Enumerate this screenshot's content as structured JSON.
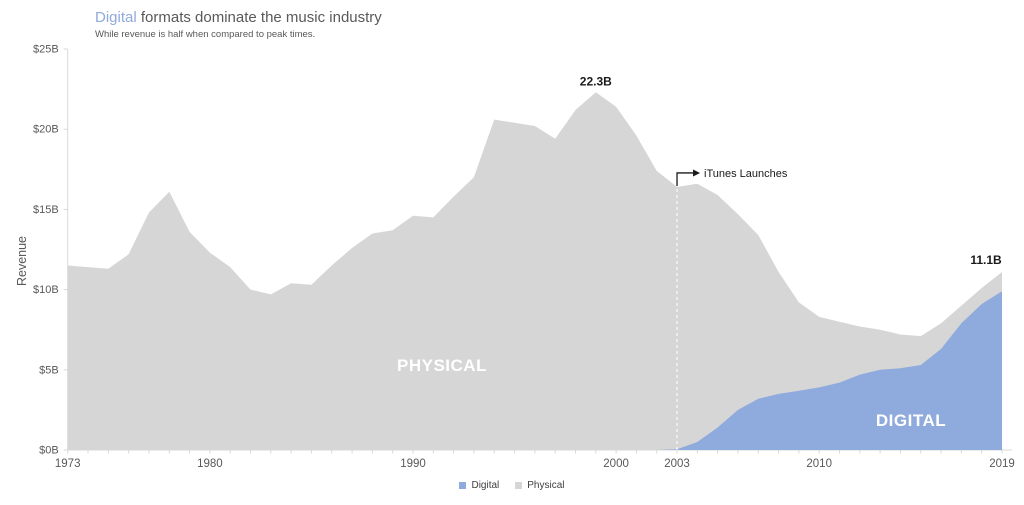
{
  "header": {
    "title_highlight": "Digital",
    "title_rest": " formats dominate the music industry",
    "subtitle": "While revenue is half when compared to peak times."
  },
  "legend": {
    "items": [
      {
        "label": "Digital",
        "color": "#8faadc"
      },
      {
        "label": "Physical",
        "color": "#d6d6d6"
      }
    ]
  },
  "chart_data": {
    "type": "area",
    "stacked": true,
    "title": "Digital formats dominate the music industry",
    "subtitle": "While revenue is half when compared to peak times.",
    "xlabel": "",
    "ylabel": "Revenue",
    "ylim": [
      0,
      25
    ],
    "x_range": [
      1973,
      2019
    ],
    "axis_color": "#d9d9d9",
    "grid": false,
    "legend_position": "bottom-center",
    "y_ticks": [
      {
        "value": 0,
        "label": "$0B"
      },
      {
        "value": 5,
        "label": "$5B"
      },
      {
        "value": 10,
        "label": "$10B"
      },
      {
        "value": 15,
        "label": "$15B"
      },
      {
        "value": 20,
        "label": "$20B"
      },
      {
        "value": 25,
        "label": "$25B"
      }
    ],
    "x_ticks": [
      {
        "value": 1973,
        "label": "1973"
      },
      {
        "value": 1980,
        "label": "1980"
      },
      {
        "value": 1990,
        "label": "1990"
      },
      {
        "value": 2000,
        "label": "2000"
      },
      {
        "value": 2003,
        "label": "2003"
      },
      {
        "value": 2010,
        "label": "2010"
      },
      {
        "value": 2019,
        "label": "2019"
      }
    ],
    "years": [
      1973,
      1974,
      1975,
      1976,
      1977,
      1978,
      1979,
      1980,
      1981,
      1982,
      1983,
      1984,
      1985,
      1986,
      1987,
      1988,
      1989,
      1990,
      1991,
      1992,
      1993,
      1994,
      1995,
      1996,
      1997,
      1998,
      1999,
      2000,
      2001,
      2002,
      2003,
      2004,
      2005,
      2006,
      2007,
      2008,
      2009,
      2010,
      2011,
      2012,
      2013,
      2014,
      2015,
      2016,
      2017,
      2018,
      2019
    ],
    "series": [
      {
        "name": "Digital",
        "color": "#8faadc",
        "values": [
          0,
          0,
          0,
          0,
          0,
          0,
          0,
          0,
          0,
          0,
          0,
          0,
          0,
          0,
          0,
          0,
          0,
          0,
          0,
          0,
          0,
          0,
          0,
          0,
          0,
          0,
          0,
          0,
          0,
          0,
          0.05,
          0.5,
          1.4,
          2.5,
          3.2,
          3.5,
          3.7,
          3.9,
          4.2,
          4.7,
          5.0,
          5.1,
          5.3,
          6.3,
          7.9,
          9.1,
          9.9
        ]
      },
      {
        "name": "Physical",
        "color": "#d6d6d6",
        "values": [
          11.5,
          11.4,
          11.3,
          12.2,
          14.8,
          16.1,
          13.6,
          12.3,
          11.4,
          10.0,
          9.7,
          10.4,
          10.3,
          11.5,
          12.6,
          13.5,
          13.7,
          14.6,
          14.5,
          15.8,
          17.0,
          20.6,
          20.4,
          20.2,
          19.4,
          21.2,
          22.3,
          21.4,
          19.6,
          17.4,
          16.35,
          16.1,
          14.5,
          12.2,
          10.2,
          7.6,
          5.5,
          4.4,
          3.8,
          3.0,
          2.5,
          2.1,
          1.8,
          1.6,
          1.1,
          1.0,
          1.2
        ]
      }
    ],
    "annotations": {
      "peak_label": "22.3B",
      "peak_year": 1999,
      "end_label": "11.1B",
      "end_year": 2019,
      "physical_label": "PHYSICAL",
      "digital_label": "DIGITAL",
      "itunes_label": "iTunes Launches",
      "itunes_year": 2003
    }
  }
}
